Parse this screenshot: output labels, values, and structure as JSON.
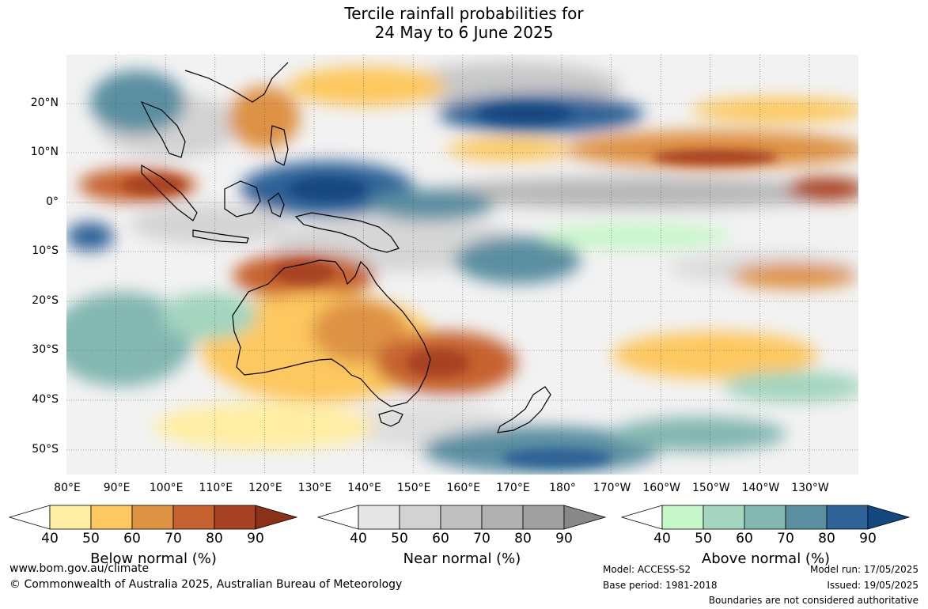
{
  "title": {
    "line1": "Tercile rainfall probabilities for",
    "line2": "24 May to 6 June 2025"
  },
  "latitude_labels": [
    "20°N",
    "10°N",
    "0°",
    "10°S",
    "20°S",
    "30°S",
    "40°S",
    "50°S"
  ],
  "longitude_labels": [
    "80°E",
    "90°E",
    "100°E",
    "110°E",
    "120°E",
    "130°E",
    "140°E",
    "150°E",
    "160°E",
    "170°E",
    "180°",
    "170°W",
    "160°W",
    "150°W",
    "140°W",
    "130°W"
  ],
  "legends": [
    {
      "title": "Below normal (%)",
      "ticks": [
        "40",
        "50",
        "60",
        "70",
        "80",
        "90"
      ],
      "colors": [
        "#ffeea3",
        "#fdc85f",
        "#de9244",
        "#c6622f",
        "#a84222",
        "#8a3117"
      ]
    },
    {
      "title": "Near normal (%)",
      "ticks": [
        "40",
        "50",
        "60",
        "70",
        "80",
        "90"
      ],
      "colors": [
        "#e5e5e5",
        "#d2d2d2",
        "#c0c0c0",
        "#b1b1b1",
        "#a0a0a0",
        "#888888"
      ]
    },
    {
      "title": "Above normal (%)",
      "ticks": [
        "40",
        "50",
        "60",
        "70",
        "80",
        "90"
      ],
      "colors": [
        "#c6f7c9",
        "#a3d5bf",
        "#83b7b1",
        "#5a8fa1",
        "#2f6297",
        "#14477f"
      ]
    }
  ],
  "footer": {
    "url": "www.bom.gov.au/climate",
    "copyright": "© Commonwealth of Australia 2025, Australian Bureau of Meteorology",
    "model": "Model: ACCESS-S2",
    "base_period": "Base period: 1981-2018",
    "model_run": "Model run: 17/05/2025",
    "issued": "Issued: 19/05/2025",
    "boundaries": "Boundaries are not considered authoritative"
  }
}
